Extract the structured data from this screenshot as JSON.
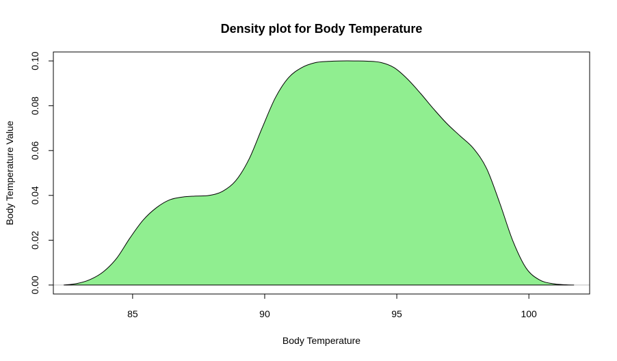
{
  "chart_data": {
    "type": "area",
    "title": "Density plot for Body Temperature",
    "xlabel": "Body Temperature",
    "ylabel": "Body Temperature Value",
    "xlim": [
      82.0,
      102.3
    ],
    "ylim": [
      -0.004,
      0.104
    ],
    "x_ticks": [
      85,
      90,
      95,
      100
    ],
    "x_tick_labels": [
      "85",
      "90",
      "95",
      "100"
    ],
    "y_ticks": [
      0.0,
      0.02,
      0.04,
      0.06,
      0.08,
      0.1
    ],
    "y_tick_labels": [
      "0.00",
      "0.02",
      "0.04",
      "0.06",
      "0.08",
      "0.10"
    ],
    "fill_color": "#90ee90",
    "line_color": "#000000",
    "baseline_color": "#bebebe",
    "grid": false,
    "series": [
      {
        "x": [
          82.4,
          82.9,
          83.4,
          83.9,
          84.4,
          84.9,
          85.4,
          85.9,
          86.4,
          86.9,
          87.4,
          87.9,
          88.4,
          88.9,
          89.4,
          89.9,
          90.4,
          90.9,
          91.4,
          91.9,
          92.4,
          92.9,
          93.4,
          93.9,
          94.4,
          94.9,
          95.4,
          95.9,
          96.4,
          96.9,
          97.4,
          97.9,
          98.4,
          98.9,
          99.4,
          99.9,
          100.4,
          100.9,
          101.4,
          101.7
        ],
        "y": [
          0.0,
          0.0007,
          0.0025,
          0.006,
          0.012,
          0.021,
          0.029,
          0.0345,
          0.038,
          0.0393,
          0.0397,
          0.04,
          0.0418,
          0.0465,
          0.056,
          0.07,
          0.0835,
          0.0925,
          0.097,
          0.0992,
          0.0998,
          0.1,
          0.1,
          0.0999,
          0.0993,
          0.097,
          0.092,
          0.0855,
          0.0785,
          0.072,
          0.0665,
          0.061,
          0.052,
          0.0365,
          0.0195,
          0.0075,
          0.0023,
          0.0006,
          0.0001,
          0.0
        ]
      }
    ]
  }
}
